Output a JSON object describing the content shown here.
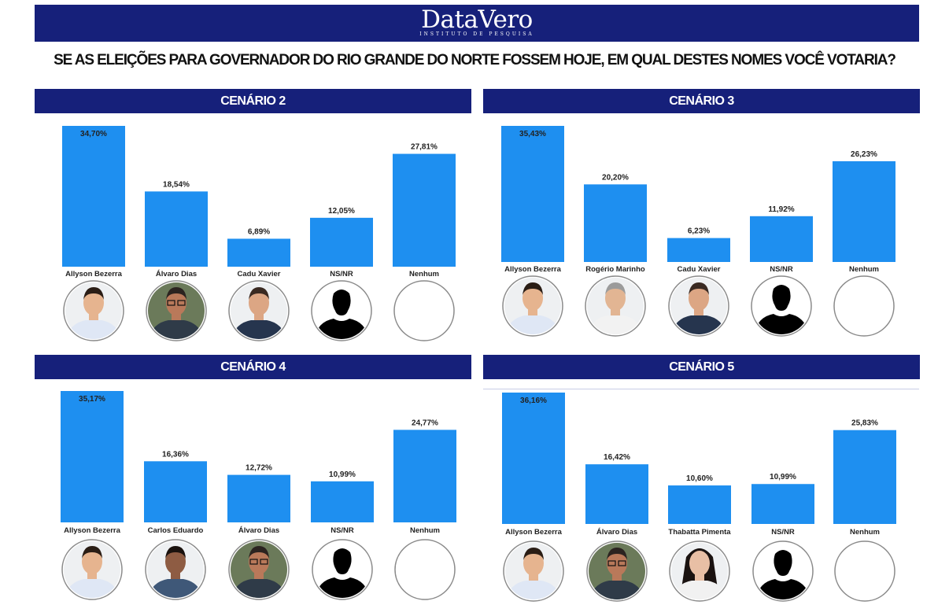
{
  "header": {
    "logo_name": "DataVero",
    "logo_sub": "INSTITUTO DE PESQUISA",
    "question": "SE AS ELEIÇÕES PARA GOVERNADOR DO RIO GRANDE DO NORTE FOSSEM HOJE, EM QUAL DESTES NOMES VOCÊ VOTARIA?"
  },
  "colors": {
    "banner": "#16207a",
    "bar": "#1e8ff0"
  },
  "chart_data": [
    {
      "type": "bar",
      "title": "CENÁRIO 2",
      "categories": [
        "Allyson Bezerra",
        "Álvaro Dias",
        "Cadu Xavier",
        "NS/NR",
        "Nenhum"
      ],
      "values": [
        34.7,
        18.54,
        6.89,
        12.05,
        27.81
      ],
      "labels": [
        "34,70%",
        "18,54%",
        "6,89%",
        "12,05%",
        "27,81%"
      ],
      "photos": [
        "man-young",
        "man-glasses",
        "man-bald",
        "silhouette",
        "empty"
      ]
    },
    {
      "type": "bar",
      "title": "CENÁRIO 3",
      "categories": [
        "Allyson Bezerra",
        "Rogério Marinho",
        "Cadu Xavier",
        "NS/NR",
        "Nenhum"
      ],
      "values": [
        35.43,
        20.2,
        6.23,
        11.92,
        26.23
      ],
      "labels": [
        "35,43%",
        "20,20%",
        "6,23%",
        "11,92%",
        "26,23%"
      ],
      "photos": [
        "man-young",
        "man-gray",
        "man-bald",
        "silhouette",
        "empty"
      ]
    },
    {
      "type": "bar",
      "title": "CENÁRIO 4",
      "categories": [
        "Allyson Bezerra",
        "Carlos Eduardo",
        "Álvaro Dias",
        "NS/NR",
        "Nenhum"
      ],
      "values": [
        35.17,
        16.36,
        12.72,
        10.99,
        24.77
      ],
      "labels": [
        "35,17%",
        "16,36%",
        "12,72%",
        "10,99%",
        "24,77%"
      ],
      "photos": [
        "man-young",
        "man-dark",
        "man-glasses",
        "silhouette",
        "empty"
      ]
    },
    {
      "type": "bar",
      "title": "CENÁRIO 5",
      "categories": [
        "Allyson Bezerra",
        "Álvaro Dias",
        "Thabatta Pimenta",
        "NS/NR",
        "Nenhum"
      ],
      "values": [
        36.16,
        16.42,
        10.6,
        10.99,
        25.83
      ],
      "labels": [
        "36,16%",
        "16,42%",
        "10,60%",
        "10,99%",
        "25,83%"
      ],
      "photos": [
        "man-young",
        "man-glasses",
        "woman",
        "silhouette",
        "empty"
      ]
    }
  ]
}
